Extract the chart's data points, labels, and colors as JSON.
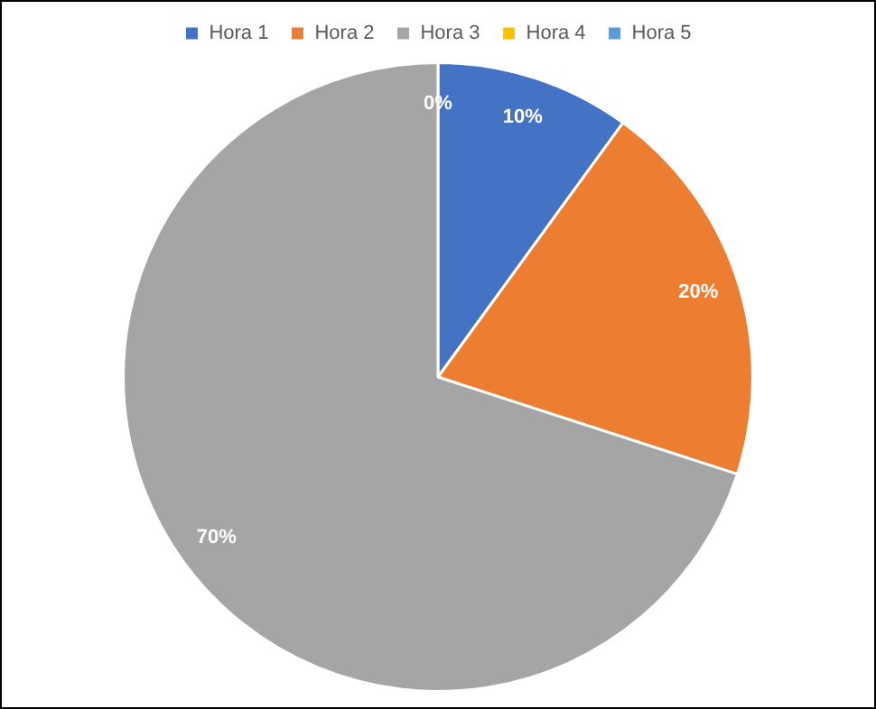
{
  "chart_data": {
    "type": "pie",
    "categories": [
      "Hora 1",
      "Hora 2",
      "Hora 3",
      "Hora 4",
      "Hora 5"
    ],
    "values": [
      10,
      20,
      70,
      0,
      0
    ],
    "colors": [
      "#4472c4",
      "#ed7d31",
      "#a5a5a5",
      "#ffc000",
      "#5b9bd5"
    ],
    "value_labels": [
      "10%",
      "20%",
      "70%",
      "0%",
      null
    ],
    "legend": "top"
  }
}
